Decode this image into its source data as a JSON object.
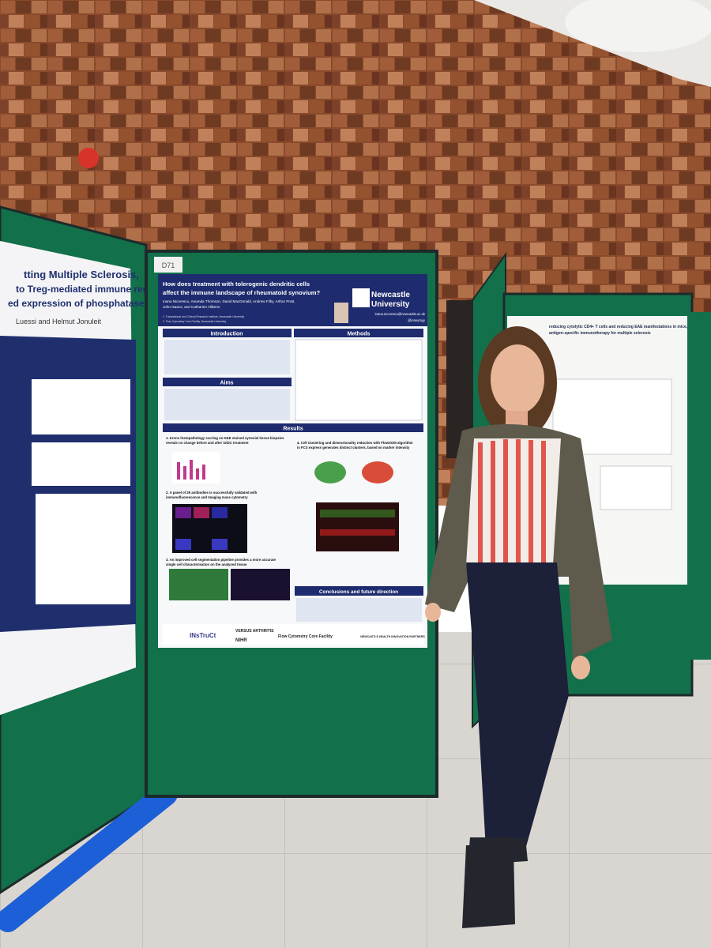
{
  "left_poster": {
    "title_lines": [
      "tting Multiple Sclerosis,",
      "to Treg-mediated immune regulation",
      "ed expression of phosphatase PTEN"
    ],
    "authors": "Luessi and Helmut Jonuleit"
  },
  "board_label": "D71",
  "poster": {
    "title_lines": [
      "How does treatment with tolerogenic dendritic cells",
      "affect the immune landscape of rheumatoid synovium?"
    ],
    "university_lines": [
      "Newcastle",
      "University"
    ],
    "author_lines": [
      "Ioana Nicorescu, Amanda Thomson, David MacDonald, Andrew Filby, Arthur Pratt,",
      "John Isaacs, and Catharien Hilkens"
    ],
    "affiliations": [
      "1. Translational and Clinical Research Institute, Newcastle University",
      "2. Flow Cytometry Core Facility, Newcastle University"
    ],
    "email": "ioana.nicorescu@newcastle.ac.uk",
    "handle": "@ioneymyy",
    "sections": {
      "introduction": "Introduction",
      "methods": "Methods",
      "aims": "Aims",
      "results": "Results",
      "conclusions": "Conclusions and future direction"
    },
    "results": [
      [
        "1. Krenn histopathology scoring on H&E stained synovial tissue biopsies",
        "reveals no change before and after tolDC treatment"
      ],
      [
        "2. A panel of 29 antibodies is successfully validated with",
        "immunofluorescence and Imaging mass cytometry"
      ],
      [
        "3. An improved cell segmentation pipeline provides a more accurate",
        "single cell characterisation on the analysed tissue"
      ],
      [
        "4. Cell clustering and dimensionality reduction with FlowSOM algorithm",
        "in FCS express generates distinct clusters, based on marker intensity"
      ]
    ],
    "logos": [
      "INsTruCt",
      "VERSUS ARTHRITIS",
      "NIHR",
      "Flow Cytometry Core Facility",
      "NEWCASTLE HEALTH INNOVATION PARTNERS"
    ]
  },
  "right_poster": {
    "title_lines": [
      "reducing cytolytic CD4+ T cells and reducing EAE manifestations in mice,",
      "antigen-specific immunotherapy for multiple sclerosis"
    ]
  }
}
